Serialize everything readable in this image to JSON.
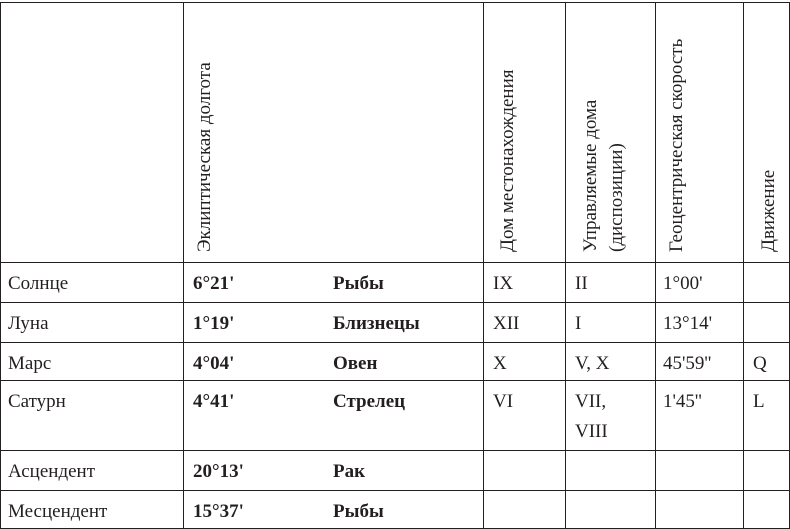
{
  "table": {
    "headers": [
      "Эклиптическая долгота",
      "Дом местонахождения",
      "Управляемые дома (диспозиции)",
      "Геоцентрическая скорость",
      "Движение"
    ],
    "rows": [
      [
        "Солнце",
        "6°21'",
        "Рыбы",
        "IX",
        "II",
        "1°00'",
        null
      ],
      [
        "Луна",
        "1°19'",
        "Близнецы",
        "XII",
        "I",
        "13°14'",
        null
      ],
      [
        "Марс",
        "4°04'",
        "Овен",
        "X",
        "V, X",
        "45'59''",
        "Q"
      ],
      [
        "Сатурн",
        "4°41'",
        "Стрелец",
        "VI",
        "VII, VIII",
        "1'45''",
        "L"
      ],
      [
        "Асцендент",
        "20°13'",
        "Рак",
        null,
        null,
        null,
        null
      ],
      [
        "Месцендент",
        "15°37'",
        "Рыбы",
        null,
        null,
        null,
        null
      ]
    ]
  }
}
